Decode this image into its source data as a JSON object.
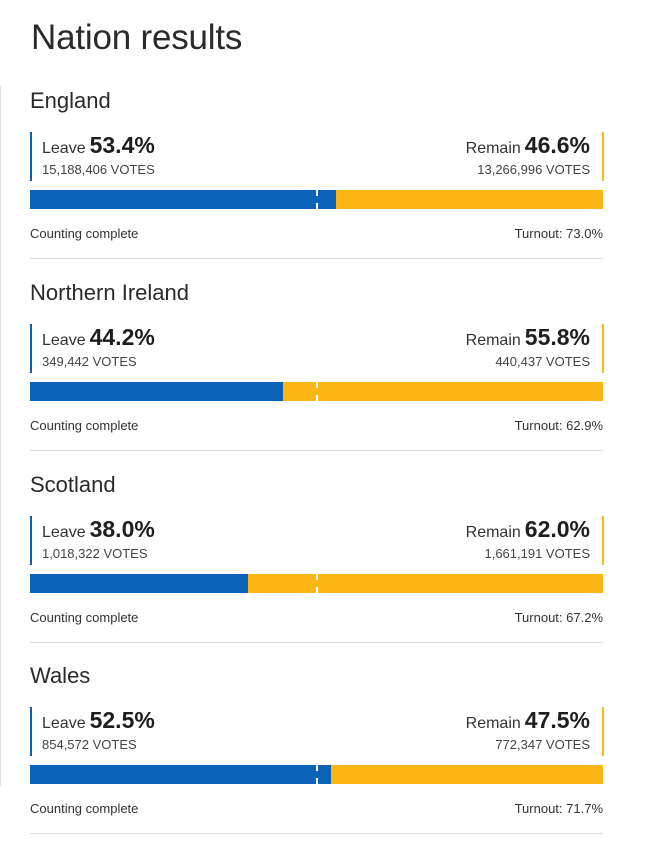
{
  "title": "Nation results",
  "nations": [
    {
      "name": "England",
      "leave": {
        "label": "Leave",
        "pct": "53.4%",
        "votes": "15,188,406 VOTES",
        "share": 0.534
      },
      "remain": {
        "label": "Remain",
        "pct": "46.6%",
        "votes": "13,266,996 VOTES"
      },
      "status": "Counting complete",
      "turnout": "Turnout: 73.0%"
    },
    {
      "name": "Northern Ireland",
      "leave": {
        "label": "Leave",
        "pct": "44.2%",
        "votes": "349,442 VOTES",
        "share": 0.442
      },
      "remain": {
        "label": "Remain",
        "pct": "55.8%",
        "votes": "440,437 VOTES"
      },
      "status": "Counting complete",
      "turnout": "Turnout: 62.9%"
    },
    {
      "name": "Scotland",
      "leave": {
        "label": "Leave",
        "pct": "38.0%",
        "votes": "1,018,322 VOTES",
        "share": 0.38
      },
      "remain": {
        "label": "Remain",
        "pct": "62.0%",
        "votes": "1,661,191 VOTES"
      },
      "status": "Counting complete",
      "turnout": "Turnout: 67.2%"
    },
    {
      "name": "Wales",
      "leave": {
        "label": "Leave",
        "pct": "52.5%",
        "votes": "854,572 VOTES",
        "share": 0.525
      },
      "remain": {
        "label": "Remain",
        "pct": "47.5%",
        "votes": "772,347 VOTES"
      },
      "status": "Counting complete",
      "turnout": "Turnout: 71.7%"
    }
  ],
  "colors": {
    "leave": "#0a63b8",
    "remain": "#fbb613"
  }
}
